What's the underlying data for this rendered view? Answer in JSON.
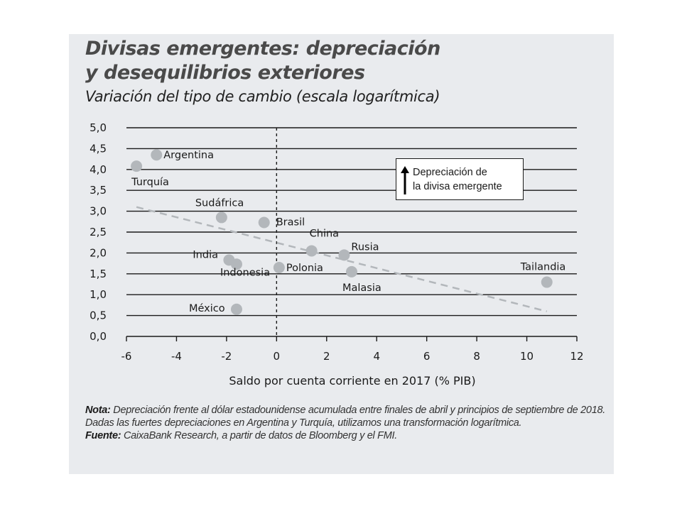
{
  "title_line1": "Divisas emergentes: depreciación",
  "title_line2": "y desequilibrios exteriores",
  "subtitle": "Variación del tipo de cambio (escala logarítmica)",
  "annotation": {
    "line1": "Depreciación de",
    "line2": "la divisa emergente"
  },
  "note": {
    "label": "Nota:",
    "text": "Depreciación frente al dólar estadounidense acumulada entre finales de abril y principios de septiembre de 2018. Dadas las fuertes depreciaciones en Argentina y Turquía, utilizamos una transformación logarítmica."
  },
  "source": {
    "label": "Fuente:",
    "text": "CaixaBank Research, a partir de datos de Bloomberg y el FMI."
  },
  "colors": {
    "panel": "#e9ebee",
    "point": "#b3b7bb",
    "trend": "#b3b7bb",
    "grid": "#1a1a1a"
  },
  "chart_data": {
    "type": "scatter",
    "xlabel": "Saldo por cuenta corriente en 2017 (% PIB)",
    "ylabel": "",
    "xlim": [
      -6,
      12
    ],
    "ylim": [
      0,
      5
    ],
    "x_ticks": [
      -6,
      -4,
      -2,
      0,
      2,
      4,
      6,
      8,
      10,
      12
    ],
    "x_tick_labels": [
      "-6",
      "-4",
      "-2",
      "0",
      "2",
      "4",
      "6",
      "8",
      "10",
      "12"
    ],
    "y_ticks": [
      0,
      0.5,
      1,
      1.5,
      2,
      2.5,
      3,
      3.5,
      4,
      4.5,
      5
    ],
    "y_tick_labels": [
      "0,0",
      "0,5",
      "1,0",
      "1,5",
      "2,0",
      "2,5",
      "3,0",
      "3,5",
      "4,0",
      "4,5",
      "5,0"
    ],
    "grid": "horizontal",
    "reference_line_x": 0,
    "trend_line": [
      [
        -5.6,
        3.1
      ],
      [
        10.8,
        0.6
      ]
    ],
    "points": [
      {
        "label": "Argentina",
        "x": -4.8,
        "y": 4.35
      },
      {
        "label": "Turquía",
        "x": -5.6,
        "y": 4.08
      },
      {
        "label": "Sudáfrica",
        "x": -2.2,
        "y": 2.85
      },
      {
        "label": "Brasil",
        "x": -0.5,
        "y": 2.73
      },
      {
        "label": "China",
        "x": 1.4,
        "y": 2.05
      },
      {
        "label": "Rusia",
        "x": 2.7,
        "y": 1.95
      },
      {
        "label": "India",
        "x": -1.9,
        "y": 1.83
      },
      {
        "label": "Indonesia",
        "x": -1.6,
        "y": 1.73
      },
      {
        "label": "Polonia",
        "x": 0.1,
        "y": 1.65
      },
      {
        "label": "Malasia",
        "x": 3.0,
        "y": 1.55
      },
      {
        "label": "Tailandia",
        "x": 10.8,
        "y": 1.3
      },
      {
        "label": "México",
        "x": -1.6,
        "y": 0.65
      }
    ]
  }
}
